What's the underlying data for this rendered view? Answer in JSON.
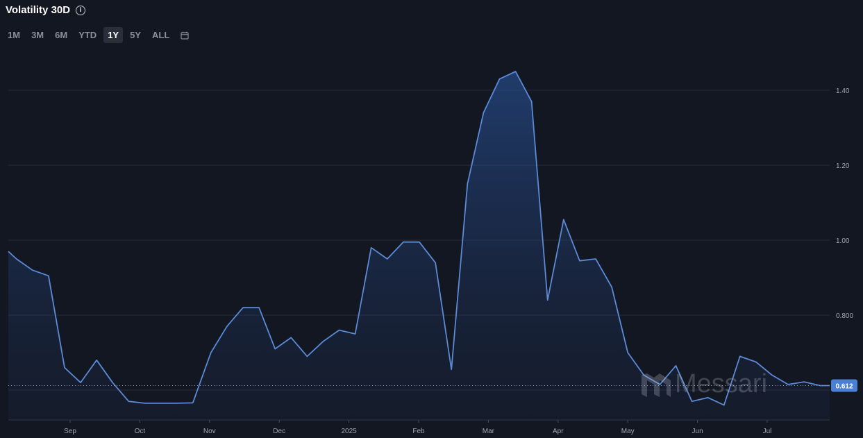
{
  "header": {
    "title": "Volatility 30D"
  },
  "ranges": [
    "1M",
    "3M",
    "6M",
    "YTD",
    "1Y",
    "5Y",
    "ALL"
  ],
  "active_range": "1Y",
  "watermark": "Messari",
  "colors": {
    "background": "#131722",
    "line": "#5b8ad6",
    "grid": "#2a2e39",
    "badge": "#4a7fd4"
  },
  "chart_data": {
    "type": "area",
    "title": "Volatility 30D",
    "x_tick_labels": [
      "Sep",
      "Oct",
      "Nov",
      "Dec",
      "2025",
      "Feb",
      "Mar",
      "Apr",
      "May",
      "Jun",
      "Jul"
    ],
    "x_ticks_months": [
      1,
      2,
      3,
      4,
      5,
      6,
      7,
      8,
      9,
      10,
      11
    ],
    "y_tick_labels": [
      "1.40",
      "1.20",
      "1.00",
      "0.800"
    ],
    "y_ticks": [
      1.4,
      1.2,
      1.0,
      0.8
    ],
    "ylim": [
      0.52,
      1.52
    ],
    "current_value": 0.612,
    "current_label": "0.612",
    "grid": true,
    "series": [
      {
        "x_months": [
          0,
          0.23,
          0.46,
          0.69,
          0.92,
          1.15,
          1.38,
          1.61,
          1.84,
          2.07,
          2.3,
          2.53,
          2.76,
          3.02,
          3.25,
          3.48,
          3.71,
          3.94,
          4.17,
          4.4,
          4.63,
          4.86,
          5.09,
          5.32,
          5.55,
          5.78,
          6.01,
          6.24,
          6.47,
          6.7,
          6.93,
          7.16,
          7.39,
          7.62,
          7.85,
          8.08,
          8.31,
          8.54,
          8.77,
          9.0,
          9.23,
          9.46,
          9.69,
          9.92,
          10.15,
          10.38,
          10.61,
          10.84,
          11.07,
          11.3,
          11.53,
          11.76,
          11.99
        ],
        "values": [
          0.97,
          0.95,
          0.92,
          0.905,
          0.66,
          0.62,
          0.68,
          0.62,
          0.57,
          0.565,
          0.565,
          0.565,
          0.566,
          0.7,
          0.77,
          0.82,
          0.82,
          0.71,
          0.74,
          0.69,
          0.73,
          0.76,
          0.75,
          0.98,
          0.95,
          0.995,
          0.995,
          0.94,
          0.655,
          1.15,
          1.34,
          1.43,
          1.45,
          1.37,
          0.84,
          1.055,
          0.945,
          0.95,
          0.875,
          0.7,
          0.64,
          0.615,
          0.665,
          0.57,
          0.58,
          0.56,
          0.69,
          0.675,
          0.64,
          0.615,
          0.622,
          0.612,
          0.612
        ]
      }
    ]
  }
}
